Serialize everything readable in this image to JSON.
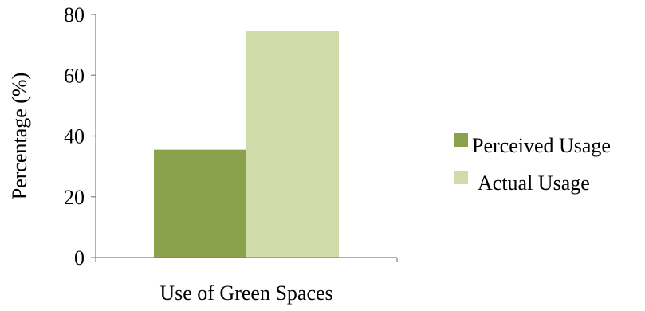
{
  "chart_data": {
    "type": "bar",
    "title": "",
    "categories": [
      "Use of Green Spaces"
    ],
    "series": [
      {
        "name": "Perceived Usage",
        "values": [
          35.5
        ],
        "color": "#8aa24c"
      },
      {
        "name": "Actual Usage",
        "values": [
          74.5
        ],
        "color": "#cfdca9"
      }
    ],
    "xlabel": "Use of Green Spaces",
    "ylabel": "Percentage (%)",
    "ylim": [
      0,
      80
    ],
    "yticks": [
      "0",
      "20",
      "40",
      "60",
      "80"
    ],
    "grid": false,
    "legend_position": "right"
  }
}
